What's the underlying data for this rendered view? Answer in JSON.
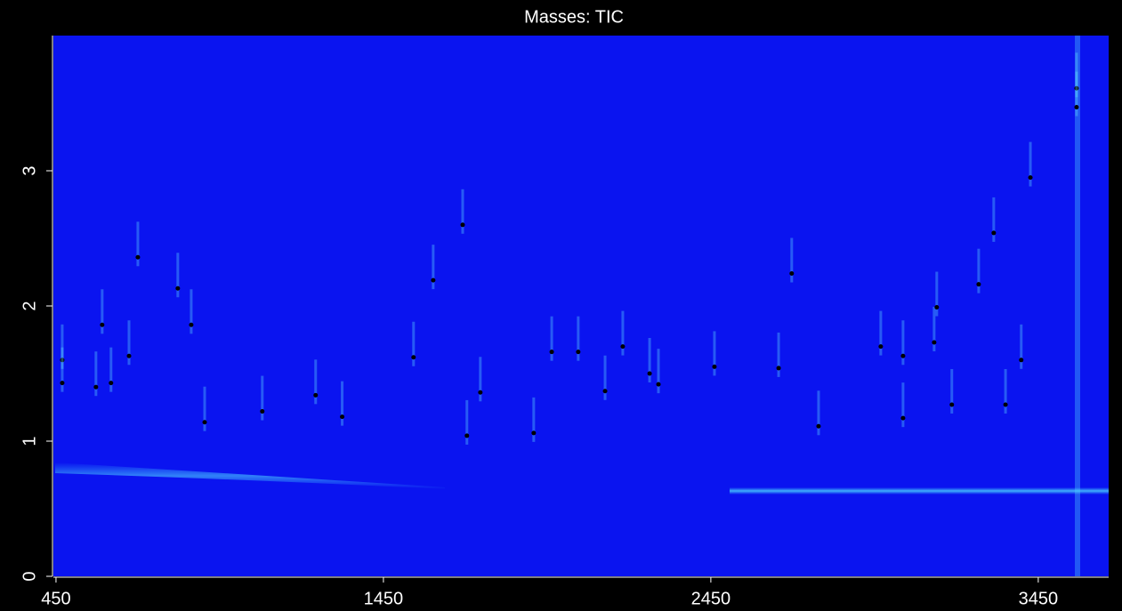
{
  "chart_data": {
    "type": "scatter",
    "title": "Masses: TIC",
    "x": [
      469,
      469,
      572,
      591,
      618,
      673,
      700,
      822,
      863,
      904,
      1080,
      1243,
      1324,
      1542,
      1602,
      1692,
      1705,
      1746,
      1909,
      1964,
      2045,
      2127,
      2181,
      2263,
      2290,
      2461,
      2657,
      2697,
      2779,
      2969,
      3037,
      3037,
      3132,
      3140,
      3186,
      3268,
      3314,
      3350,
      3426,
      3398,
      3567,
      3567
    ],
    "y": [
      1.6,
      1.43,
      1.4,
      1.86,
      1.43,
      1.63,
      2.36,
      2.13,
      1.86,
      1.14,
      1.22,
      1.34,
      1.18,
      1.62,
      2.19,
      2.6,
      1.04,
      1.36,
      1.06,
      1.66,
      1.66,
      1.37,
      1.7,
      1.5,
      1.42,
      1.55,
      1.54,
      2.24,
      1.11,
      1.7,
      1.63,
      1.17,
      1.73,
      1.99,
      1.27,
      2.16,
      2.54,
      1.27,
      2.95,
      1.6,
      3.61,
      3.47
    ],
    "color": "#000000",
    "background": "#0a14f0",
    "xlim": [
      442,
      3665
    ],
    "ylim": [
      0,
      4
    ],
    "xticks": [
      450,
      1450,
      2450,
      3450
    ],
    "yticks": [
      0,
      1,
      2,
      3
    ]
  }
}
